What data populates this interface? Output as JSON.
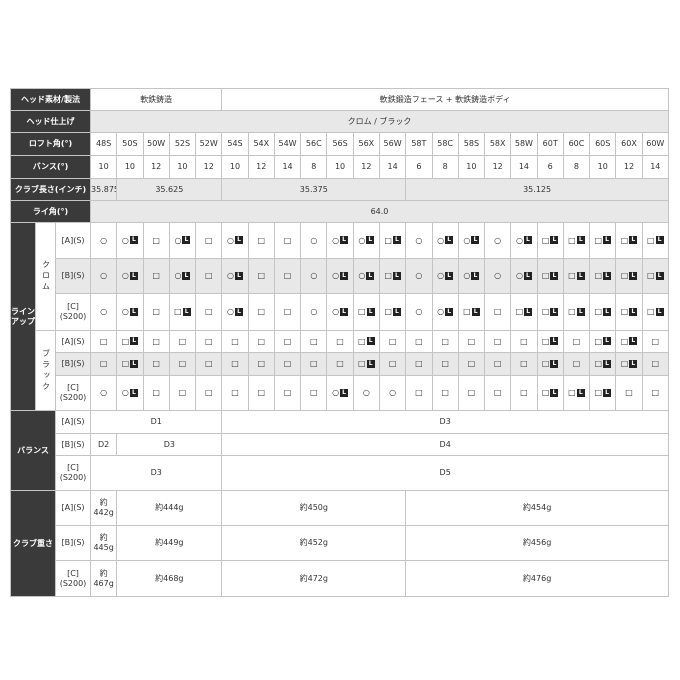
{
  "spec_rows": [
    {
      "label": "ヘッド素材/製法",
      "cells": [
        "軟鉄鋳造",
        "軟鉄鍛造フェース + 軟鉄鋳造ボディ"
      ]
    },
    {
      "label": "ヘッド仕上げ",
      "cells": [
        "クロム / ブラック"
      ]
    },
    {
      "label": "ロフト角(°)",
      "cells": [
        "48S",
        "50S",
        "50W",
        "52S",
        "52W",
        "54S",
        "54X",
        "54W",
        "56C",
        "56S",
        "56X",
        "56W",
        "58T",
        "58C",
        "58S",
        "58X",
        "58W",
        "60T",
        "60C",
        "60S",
        "60X",
        "60W"
      ]
    },
    {
      "label": "バンス(°)",
      "cells": [
        10,
        10,
        12,
        10,
        12,
        10,
        12,
        14,
        8,
        10,
        12,
        14,
        6,
        8,
        10,
        12,
        14,
        6,
        8,
        10,
        12,
        14
      ]
    },
    {
      "label": "クラブ長さ(インチ)",
      "cells": [
        "35.875",
        "35.625",
        "35.375",
        "35.125"
      ]
    },
    {
      "label": "ライ角(°)",
      "cells": [
        "64.0"
      ]
    }
  ],
  "lineup": {
    "label": "ラインアップ",
    "groups": [
      {
        "label": "クロム",
        "rows": [
          {
            "label": "[A](S)",
            "cells": [
              "○",
              "○L",
              "□",
              "○L",
              "□",
              "○L",
              "□",
              "□",
              "○",
              "○L",
              "○L",
              "□L",
              "○",
              "○L",
              "○L",
              "○",
              "○L",
              "□L",
              "□L",
              "□L",
              "□L",
              "□L"
            ]
          },
          {
            "label": "[B](S)",
            "cells": [
              "○",
              "○L",
              "□",
              "○L",
              "□",
              "○L",
              "□",
              "□",
              "○",
              "○L",
              "○L",
              "□L",
              "○",
              "○L",
              "○L",
              "○",
              "○L",
              "□L",
              "□L",
              "□L",
              "□L",
              "□L"
            ]
          },
          {
            "label": "[C](S200)",
            "cells": [
              "○",
              "○L",
              "□",
              "□L",
              "□",
              "○L",
              "□",
              "□",
              "○",
              "○L",
              "□L",
              "□L",
              "○",
              "○L",
              "□L",
              "□",
              "□L",
              "□L",
              "□L",
              "□L",
              "□L",
              "□L"
            ]
          }
        ]
      },
      {
        "label": "ブラック",
        "rows": [
          {
            "label": "[A](S)",
            "cells": [
              "□",
              "□L",
              "□",
              "□",
              "□",
              "□",
              "□",
              "□",
              "□",
              "□",
              "□L",
              "□",
              "□",
              "□",
              "□",
              "□",
              "□",
              "□L",
              "□",
              "□L",
              "□L",
              "□"
            ]
          },
          {
            "label": "[B](S)",
            "cells": [
              "□",
              "□L",
              "□",
              "□",
              "□",
              "□",
              "□",
              "□",
              "□",
              "□",
              "□L",
              "□",
              "□",
              "□",
              "□",
              "□",
              "□",
              "□L",
              "□",
              "□L",
              "□L",
              "□"
            ]
          },
          {
            "label": "[C](S200)",
            "cells": [
              "○",
              "○L",
              "□",
              "□",
              "□",
              "□",
              "□",
              "□",
              "□",
              "○L",
              "○",
              "○",
              "□",
              "□",
              "□",
              "□",
              "□",
              "□L",
              "□L",
              "□L",
              "□",
              "□"
            ]
          }
        ]
      }
    ]
  },
  "balance": {
    "label": "バランス",
    "rows": [
      {
        "label": "[A](S)",
        "cells": [
          "D1",
          "D3"
        ]
      },
      {
        "label": "[B](S)",
        "cells": [
          "D2",
          "D3",
          "D4"
        ]
      },
      {
        "label": "[C](S200)",
        "cells": [
          "D3",
          "D5"
        ]
      }
    ]
  },
  "weight": {
    "label": "クラブ重さ",
    "rows": [
      {
        "label": "[A](S)",
        "cells": [
          "約442g",
          "約444g",
          "約450g",
          "約454g"
        ]
      },
      {
        "label": "[B](S)",
        "cells": [
          "約445g",
          "約449g",
          "約452g",
          "約456g"
        ]
      },
      {
        "label": "[C](S200)",
        "cells": [
          "約467g",
          "約468g",
          "約472g",
          "約476g"
        ]
      }
    ]
  }
}
